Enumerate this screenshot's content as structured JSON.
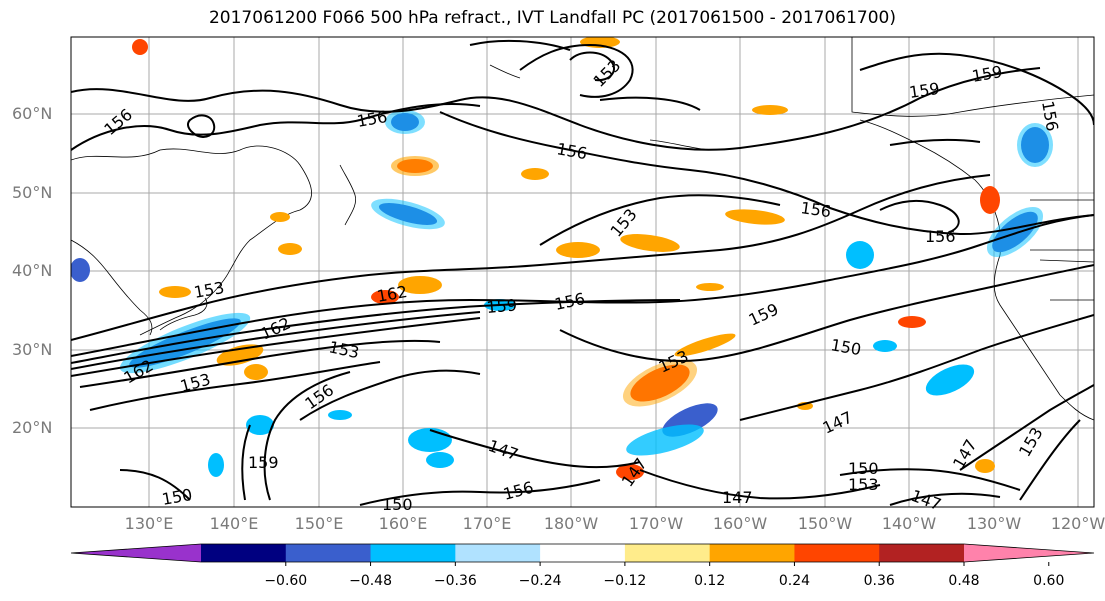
{
  "title": "2017061200 F066 500 hPa refract., IVT Landfall PC (2017061500 - 2017061700)",
  "lat_labels": [
    "60°N",
    "50°N",
    "40°N",
    "30°N",
    "20°N"
  ],
  "lon_labels": [
    "130°E",
    "140°E",
    "150°E",
    "160°E",
    "170°E",
    "180°W",
    "170°W",
    "160°W",
    "150°W",
    "140°W",
    "130°W",
    "120°W"
  ],
  "contour_labels": {
    "c1": "156",
    "c2": "156",
    "c3": "156",
    "c4": "153",
    "c5": "159",
    "c6": "159",
    "c7": "156",
    "c8": "153",
    "c9": "156",
    "c10": "156",
    "c11": "156",
    "c12": "162",
    "c13": "159",
    "c14": "156",
    "c15": "153",
    "c16": "162",
    "c17": "153",
    "c18": "162",
    "c19": "153",
    "c20": "156",
    "c21": "159",
    "c22": "153",
    "c23": "150",
    "c24": "147",
    "c25": "147",
    "c26": "147",
    "c27": "150",
    "c28": "153",
    "c29": "147",
    "c30": "150",
    "c31": "150",
    "c32": "153",
    "c33": "156",
    "c34": "150",
    "c35": "147",
    "c36": "153",
    "c37": "159",
    "c38": "147"
  },
  "colorbar": {
    "colors": [
      "#9932cc",
      "#000080",
      "#3a5fcd",
      "#00bfff",
      "#b0e2ff",
      "#ffffff",
      "#ffec8b",
      "#ffa500",
      "#ff4500",
      "#b22222",
      "#ff82ab"
    ],
    "tick_labels": [
      "-0.60",
      "-0.48",
      "-0.36",
      "-0.24",
      "-0.12",
      "0.12",
      "0.24",
      "0.36",
      "0.48",
      "0.60"
    ]
  }
}
